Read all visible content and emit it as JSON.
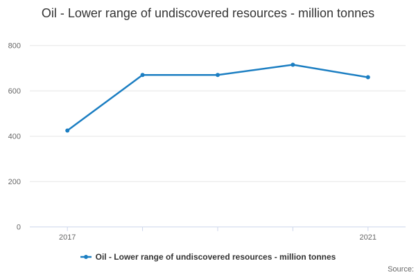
{
  "chart": {
    "title": "Oil - Lower range of undiscovered resources - million tonnes"
  },
  "legend": {
    "label": "Oil - Lower range of undiscovered resources - million tonnes"
  },
  "footer": {
    "source": "Source:"
  },
  "chart_data": {
    "type": "line",
    "title": "Oil - Lower range of undiscovered resources - million tonnes",
    "categories": [
      "2017",
      "2018",
      "2019",
      "2020",
      "2021"
    ],
    "x_labels_visible": [
      "2017",
      "2021"
    ],
    "series": [
      {
        "name": "Oil - Lower range of undiscovered resources - million tonnes",
        "values": [
          425,
          670,
          670,
          715,
          660
        ]
      }
    ],
    "xlabel": "",
    "ylabel": "",
    "ylim": [
      0,
      800
    ],
    "yticks": [
      0,
      200,
      400,
      600,
      800
    ],
    "grid": true,
    "legend_position": "bottom",
    "colors": {
      "line": "#1b7ec2",
      "grid": "#e6e6e6",
      "axis": "#ccd6eb",
      "tick_label": "#666666",
      "title": "#333333",
      "legend_text": "#333333",
      "source_text": "#666666"
    }
  }
}
